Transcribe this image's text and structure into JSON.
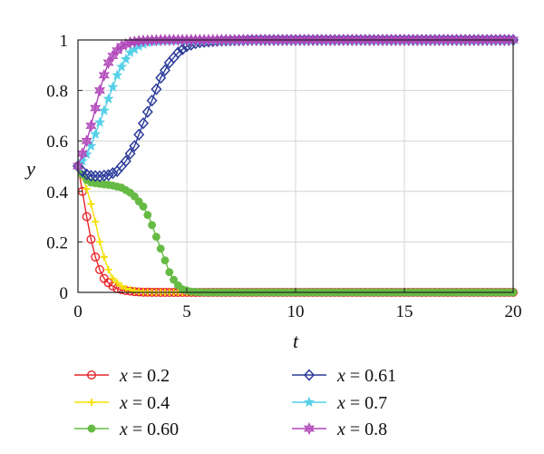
{
  "chart_data": {
    "type": "line",
    "title": "",
    "xlabel": "t",
    "ylabel": "y",
    "xlim": [
      0,
      20
    ],
    "ylim": [
      0,
      1
    ],
    "x_ticks": [
      "0",
      "5",
      "10",
      "15",
      "20"
    ],
    "y_ticks": [
      "0",
      "0.2",
      "0.4",
      "0.6",
      "0.8",
      "1"
    ],
    "grid": true,
    "legend_position": "bottom",
    "series": [
      {
        "name": "x = 0.2",
        "var": "x",
        "value_text": " = 0.2",
        "color": "#e8262a",
        "marker": "circle",
        "points": [
          [
            0,
            0.5
          ],
          [
            0.2,
            0.4
          ],
          [
            0.4,
            0.3
          ],
          [
            0.6,
            0.21
          ],
          [
            0.8,
            0.14
          ],
          [
            1.0,
            0.09
          ],
          [
            1.2,
            0.055
          ],
          [
            1.5,
            0.03
          ],
          [
            1.8,
            0.015
          ],
          [
            2.2,
            0.007
          ],
          [
            2.6,
            0.003
          ],
          [
            3.0,
            0.001
          ],
          [
            4,
            0
          ],
          [
            6,
            0
          ],
          [
            10,
            0
          ],
          [
            15,
            0
          ],
          [
            20,
            0
          ]
        ]
      },
      {
        "name": "x = 0.4",
        "var": "x",
        "value_text": " = 0.4",
        "color": "#f5e000",
        "marker": "plus",
        "points": [
          [
            0,
            0.5
          ],
          [
            0.2,
            0.46
          ],
          [
            0.4,
            0.41
          ],
          [
            0.6,
            0.35
          ],
          [
            0.8,
            0.28
          ],
          [
            1.0,
            0.2
          ],
          [
            1.2,
            0.14
          ],
          [
            1.4,
            0.09
          ],
          [
            1.6,
            0.055
          ],
          [
            1.9,
            0.03
          ],
          [
            2.2,
            0.015
          ],
          [
            2.6,
            0.006
          ],
          [
            3.0,
            0.002
          ],
          [
            3.5,
            0
          ],
          [
            6,
            0
          ],
          [
            10,
            0
          ],
          [
            15,
            0
          ],
          [
            20,
            0
          ]
        ]
      },
      {
        "name": "x = 0.60",
        "var": "x",
        "value_text": " = 0.60",
        "color": "#66bb44",
        "marker": "dot",
        "points": [
          [
            0,
            0.5
          ],
          [
            0.3,
            0.45
          ],
          [
            0.6,
            0.435
          ],
          [
            1.0,
            0.43
          ],
          [
            1.5,
            0.425
          ],
          [
            2.0,
            0.415
          ],
          [
            2.5,
            0.39
          ],
          [
            3.0,
            0.34
          ],
          [
            3.3,
            0.29
          ],
          [
            3.6,
            0.22
          ],
          [
            3.9,
            0.15
          ],
          [
            4.2,
            0.08
          ],
          [
            4.5,
            0.035
          ],
          [
            4.8,
            0.012
          ],
          [
            5.2,
            0.003
          ],
          [
            5.8,
            0
          ],
          [
            10,
            0
          ],
          [
            15,
            0
          ],
          [
            20,
            0
          ]
        ]
      },
      {
        "name": "x = 0.61",
        "var": "x",
        "value_text": " = 0.61",
        "color": "#2b3b9a",
        "marker": "diamond",
        "points": [
          [
            0,
            0.5
          ],
          [
            0.3,
            0.47
          ],
          [
            0.6,
            0.462
          ],
          [
            1.0,
            0.46
          ],
          [
            1.4,
            0.465
          ],
          [
            1.8,
            0.48
          ],
          [
            2.2,
            0.52
          ],
          [
            2.6,
            0.58
          ],
          [
            3.0,
            0.67
          ],
          [
            3.4,
            0.76
          ],
          [
            3.8,
            0.85
          ],
          [
            4.2,
            0.91
          ],
          [
            4.6,
            0.95
          ],
          [
            5.0,
            0.975
          ],
          [
            5.5,
            0.99
          ],
          [
            6.5,
            0.997
          ],
          [
            8,
            1
          ],
          [
            10,
            1
          ],
          [
            15,
            1
          ],
          [
            20,
            1
          ]
        ]
      },
      {
        "name": "x = 0.7",
        "var": "x",
        "value_text": " = 0.7",
        "color": "#55d0e8",
        "marker": "star",
        "points": [
          [
            0,
            0.5
          ],
          [
            0.3,
            0.53
          ],
          [
            0.6,
            0.58
          ],
          [
            0.9,
            0.65
          ],
          [
            1.2,
            0.72
          ],
          [
            1.5,
            0.79
          ],
          [
            1.8,
            0.86
          ],
          [
            2.1,
            0.91
          ],
          [
            2.4,
            0.95
          ],
          [
            2.8,
            0.975
          ],
          [
            3.2,
            0.99
          ],
          [
            3.8,
            0.997
          ],
          [
            5,
            1
          ],
          [
            10,
            1
          ],
          [
            15,
            1
          ],
          [
            20,
            1
          ]
        ]
      },
      {
        "name": "x = 0.8",
        "var": "x",
        "value_text": " = 0.8",
        "color": "#b044b8",
        "marker": "hexstar",
        "points": [
          [
            0,
            0.5
          ],
          [
            0.2,
            0.55
          ],
          [
            0.4,
            0.6
          ],
          [
            0.6,
            0.66
          ],
          [
            0.8,
            0.73
          ],
          [
            1.0,
            0.8
          ],
          [
            1.2,
            0.86
          ],
          [
            1.4,
            0.91
          ],
          [
            1.7,
            0.95
          ],
          [
            2.0,
            0.975
          ],
          [
            2.4,
            0.99
          ],
          [
            2.9,
            0.997
          ],
          [
            4,
            1
          ],
          [
            10,
            1
          ],
          [
            15,
            1
          ],
          [
            20,
            1
          ]
        ]
      }
    ]
  }
}
